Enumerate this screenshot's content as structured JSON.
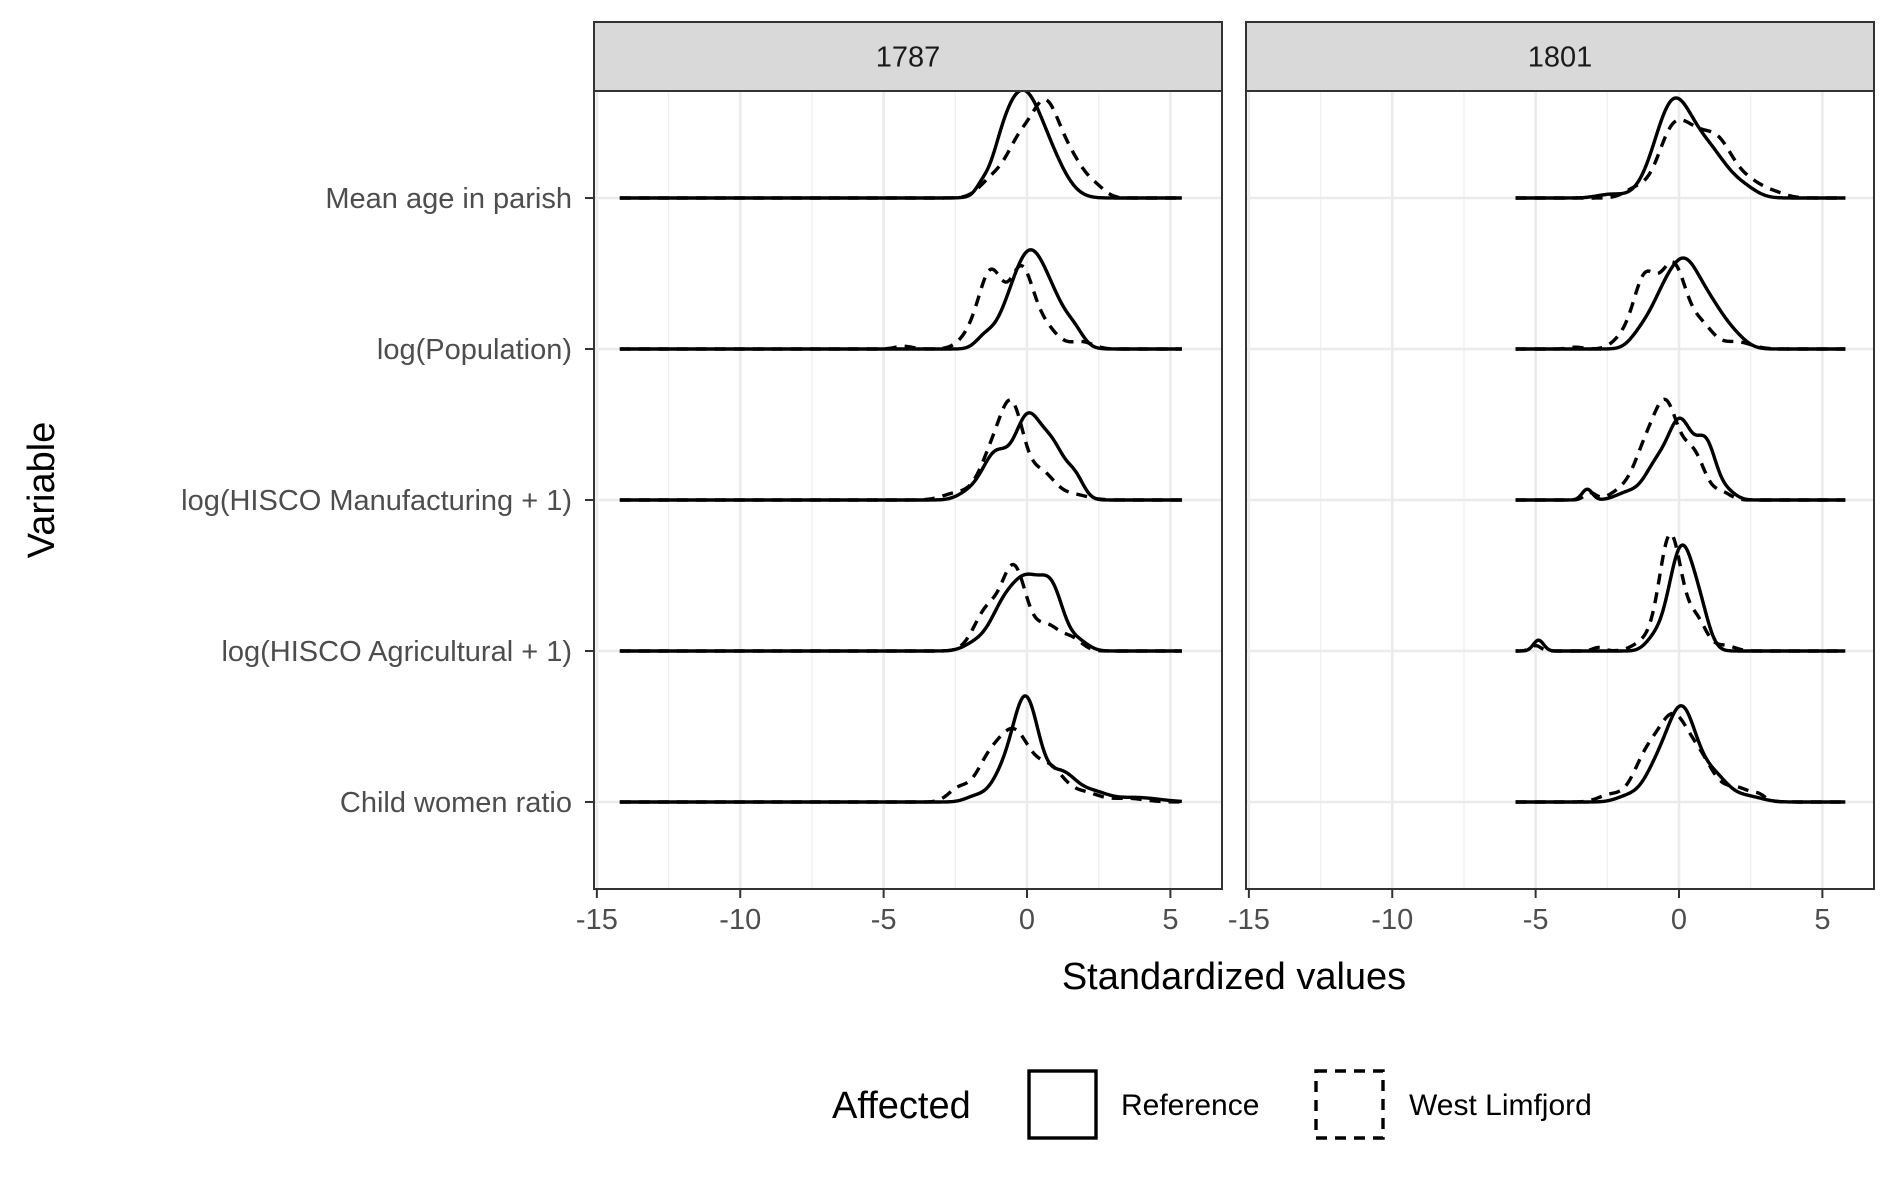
{
  "chart_data": {
    "type": "ridgeline-density",
    "xlabel": "Standardized values",
    "ylabel": "Variable",
    "xlim": [
      -15.1,
      6.8
    ],
    "x_ticks": [
      -15,
      -10,
      -5,
      0,
      5
    ],
    "x_tick_labels": [
      "-15",
      "-10",
      "-5",
      "0",
      "5"
    ],
    "grid": true,
    "categories": [
      "Mean age in parish",
      "log(Population)",
      "log(HISCO Manufacturing + 1)",
      "log(HISCO Agricultural + 1)",
      "Child women ratio"
    ],
    "facets": [
      {
        "label": "1787",
        "series": [
          {
            "name": "Reference",
            "linetype": "solid",
            "ridges": [
              {
                "category": "Mean age in parish",
                "range": [
                  -14.2,
                  5.4
                ],
                "peaks": [
                  [
                    -1.6,
                    0.03,
                    0.2
                  ],
                  [
                    -0.9,
                    0.1,
                    0.4
                  ],
                  [
                    -0.15,
                    0.56,
                    0.65
                  ],
                  [
                    0.9,
                    0.14,
                    0.55
                  ]
                ]
              },
              {
                "category": "log(Population)",
                "range": [
                  -14.2,
                  5.4
                ],
                "peaks": [
                  [
                    -1.5,
                    0.05,
                    0.3
                  ],
                  [
                    -0.6,
                    0.18,
                    0.5
                  ],
                  [
                    0.1,
                    0.4,
                    0.5
                  ],
                  [
                    0.9,
                    0.24,
                    0.55
                  ],
                  [
                    1.7,
                    0.05,
                    0.3
                  ]
                ]
              },
              {
                "category": "log(HISCO Manufacturing + 1)",
                "range": [
                  -14.2,
                  5.4
                ],
                "peaks": [
                  [
                    -2.0,
                    0.04,
                    0.4
                  ],
                  [
                    -1.1,
                    0.25,
                    0.45
                  ],
                  [
                    0.0,
                    0.43,
                    0.45
                  ],
                  [
                    0.9,
                    0.28,
                    0.45
                  ],
                  [
                    1.7,
                    0.1,
                    0.3
                  ]
                ]
              },
              {
                "category": "log(HISCO Agricultural + 1)",
                "range": [
                  -14.2,
                  5.4
                ],
                "peaks": [
                  [
                    -1.8,
                    0.04,
                    0.4
                  ],
                  [
                    -0.9,
                    0.18,
                    0.45
                  ],
                  [
                    0.0,
                    0.38,
                    0.55
                  ],
                  [
                    0.9,
                    0.28,
                    0.4
                  ],
                  [
                    1.8,
                    0.05,
                    0.35
                  ]
                ]
              },
              {
                "category": "Child women ratio",
                "range": [
                  -14.2,
                  5.4
                ],
                "peaks": [
                  [
                    -1.8,
                    0.03,
                    0.35
                  ],
                  [
                    -0.9,
                    0.12,
                    0.4
                  ],
                  [
                    -0.05,
                    0.57,
                    0.45
                  ],
                  [
                    1.2,
                    0.16,
                    0.5
                  ],
                  [
                    2.3,
                    0.05,
                    0.5
                  ],
                  [
                    3.8,
                    0.025,
                    0.8
                  ]
                ]
              }
            ]
          },
          {
            "name": "West Limfjord",
            "linetype": "dashed",
            "ridges": [
              {
                "category": "Mean age in parish",
                "range": [
                  -14.2,
                  5.4
                ],
                "peaks": [
                  [
                    -1.2,
                    0.1,
                    0.45
                  ],
                  [
                    -0.3,
                    0.26,
                    0.45
                  ],
                  [
                    0.65,
                    0.5,
                    0.5
                  ],
                  [
                    1.6,
                    0.17,
                    0.45
                  ],
                  [
                    2.4,
                    0.05,
                    0.35
                  ]
                ]
              },
              {
                "category": "log(Population)",
                "range": [
                  -14.2,
                  5.4
                ],
                "peaks": [
                  [
                    -4.3,
                    0.015,
                    0.3
                  ],
                  [
                    -2.0,
                    0.06,
                    0.4
                  ],
                  [
                    -1.25,
                    0.42,
                    0.42
                  ],
                  [
                    -0.2,
                    0.42,
                    0.4
                  ],
                  [
                    0.6,
                    0.12,
                    0.45
                  ],
                  [
                    1.9,
                    0.04,
                    0.4
                  ]
                ]
              },
              {
                "category": "log(HISCO Manufacturing + 1)",
                "range": [
                  -14.2,
                  5.4
                ],
                "peaks": [
                  [
                    -2.4,
                    0.04,
                    0.5
                  ],
                  [
                    -1.2,
                    0.25,
                    0.45
                  ],
                  [
                    -0.5,
                    0.46,
                    0.4
                  ],
                  [
                    0.5,
                    0.15,
                    0.45
                  ],
                  [
                    1.6,
                    0.03,
                    0.5
                  ]
                ]
              },
              {
                "category": "log(HISCO Agricultural + 1)",
                "range": [
                  -14.2,
                  5.4
                ],
                "peaks": [
                  [
                    -1.4,
                    0.22,
                    0.45
                  ],
                  [
                    -0.45,
                    0.45,
                    0.42
                  ],
                  [
                    0.7,
                    0.14,
                    0.45
                  ],
                  [
                    1.6,
                    0.06,
                    0.35
                  ]
                ]
              },
              {
                "category": "Child women ratio",
                "range": [
                  -14.2,
                  5.4
                ],
                "peaks": [
                  [
                    -2.4,
                    0.07,
                    0.35
                  ],
                  [
                    -1.4,
                    0.18,
                    0.45
                  ],
                  [
                    -0.45,
                    0.38,
                    0.55
                  ],
                  [
                    0.8,
                    0.18,
                    0.5
                  ],
                  [
                    2.0,
                    0.05,
                    0.5
                  ],
                  [
                    3.5,
                    0.02,
                    0.6
                  ]
                ]
              }
            ]
          }
        ]
      },
      {
        "label": "1801",
        "series": [
          {
            "name": "Reference",
            "linetype": "solid",
            "ridges": [
              {
                "category": "Mean age in parish",
                "range": [
                  -5.7,
                  5.8
                ],
                "peaks": [
                  [
                    -2.4,
                    0.02,
                    0.45
                  ],
                  [
                    -0.2,
                    0.52,
                    0.65
                  ],
                  [
                    1.1,
                    0.23,
                    0.65
                  ],
                  [
                    2.3,
                    0.04,
                    0.45
                  ]
                ]
              },
              {
                "category": "log(Population)",
                "range": [
                  -5.7,
                  5.8
                ],
                "peaks": [
                  [
                    -1.4,
                    0.05,
                    0.35
                  ],
                  [
                    -0.6,
                    0.24,
                    0.5
                  ],
                  [
                    0.2,
                    0.38,
                    0.5
                  ],
                  [
                    1.1,
                    0.22,
                    0.55
                  ],
                  [
                    2.0,
                    0.04,
                    0.4
                  ]
                ]
              },
              {
                "category": "log(HISCO Manufacturing + 1)",
                "range": [
                  -5.7,
                  5.8
                ],
                "peaks": [
                  [
                    -3.2,
                    0.06,
                    0.18
                  ],
                  [
                    -1.8,
                    0.04,
                    0.4
                  ],
                  [
                    -0.8,
                    0.18,
                    0.42
                  ],
                  [
                    0.05,
                    0.42,
                    0.42
                  ],
                  [
                    0.95,
                    0.3,
                    0.35
                  ],
                  [
                    1.7,
                    0.04,
                    0.3
                  ]
                ]
              },
              {
                "category": "log(HISCO Agricultural + 1)",
                "range": [
                  -5.7,
                  5.8
                ],
                "peaks": [
                  [
                    -4.9,
                    0.06,
                    0.18
                  ],
                  [
                    -0.9,
                    0.05,
                    0.3
                  ],
                  [
                    0.1,
                    0.58,
                    0.45
                  ],
                  [
                    0.8,
                    0.12,
                    0.3
                  ]
                ]
              },
              {
                "category": "Child women ratio",
                "range": [
                  -5.7,
                  5.8
                ],
                "peaks": [
                  [
                    -1.8,
                    0.03,
                    0.4
                  ],
                  [
                    -0.8,
                    0.16,
                    0.45
                  ],
                  [
                    0.1,
                    0.5,
                    0.5
                  ],
                  [
                    1.2,
                    0.14,
                    0.5
                  ],
                  [
                    2.4,
                    0.03,
                    0.5
                  ]
                ]
              }
            ]
          },
          {
            "name": "West Limfjord",
            "linetype": "dashed",
            "ridges": [
              {
                "category": "Mean age in parish",
                "range": [
                  -5.7,
                  5.8
                ],
                "peaks": [
                  [
                    -1.5,
                    0.05,
                    0.4
                  ],
                  [
                    -0.3,
                    0.3,
                    0.5
                  ],
                  [
                    0.5,
                    0.27,
                    0.55
                  ],
                  [
                    1.4,
                    0.25,
                    0.5
                  ],
                  [
                    2.4,
                    0.09,
                    0.55
                  ],
                  [
                    3.4,
                    0.02,
                    0.4
                  ]
                ]
              },
              {
                "category": "log(Population)",
                "range": [
                  -5.7,
                  5.8
                ],
                "peaks": [
                  [
                    -3.6,
                    0.01,
                    0.25
                  ],
                  [
                    -2.0,
                    0.05,
                    0.35
                  ],
                  [
                    -1.2,
                    0.38,
                    0.4
                  ],
                  [
                    -0.2,
                    0.46,
                    0.45
                  ],
                  [
                    0.8,
                    0.12,
                    0.4
                  ],
                  [
                    2.0,
                    0.04,
                    0.5
                  ]
                ]
              },
              {
                "category": "log(HISCO Manufacturing + 1)",
                "range": [
                  -5.7,
                  5.8
                ],
                "peaks": [
                  [
                    -3.1,
                    0.04,
                    0.2
                  ],
                  [
                    -2.0,
                    0.05,
                    0.4
                  ],
                  [
                    -1.2,
                    0.24,
                    0.4
                  ],
                  [
                    -0.45,
                    0.5,
                    0.42
                  ],
                  [
                    0.5,
                    0.25,
                    0.4
                  ],
                  [
                    1.5,
                    0.04,
                    0.3
                  ]
                ]
              },
              {
                "category": "log(HISCO Agricultural + 1)",
                "range": [
                  -5.7,
                  5.8
                ],
                "peaks": [
                  [
                    -5.0,
                    0.03,
                    0.18
                  ],
                  [
                    -2.8,
                    0.02,
                    0.2
                  ],
                  [
                    -1.2,
                    0.05,
                    0.4
                  ],
                  [
                    -0.3,
                    0.64,
                    0.38
                  ],
                  [
                    0.6,
                    0.17,
                    0.35
                  ],
                  [
                    1.6,
                    0.03,
                    0.35
                  ]
                ]
              },
              {
                "category": "Child women ratio",
                "range": [
                  -5.7,
                  5.8
                ],
                "peaks": [
                  [
                    -2.4,
                    0.04,
                    0.4
                  ],
                  [
                    -1.2,
                    0.2,
                    0.45
                  ],
                  [
                    -0.2,
                    0.46,
                    0.55
                  ],
                  [
                    0.8,
                    0.18,
                    0.45
                  ],
                  [
                    2.0,
                    0.08,
                    0.55
                  ],
                  [
                    2.8,
                    0.02,
                    0.2
                  ]
                ]
              }
            ]
          }
        ]
      }
    ],
    "legend": {
      "title": "Affected",
      "position": "bottom",
      "items": [
        {
          "label": "Reference",
          "linetype": "solid"
        },
        {
          "label": "West Limfjord",
          "linetype": "dashed"
        }
      ]
    }
  }
}
